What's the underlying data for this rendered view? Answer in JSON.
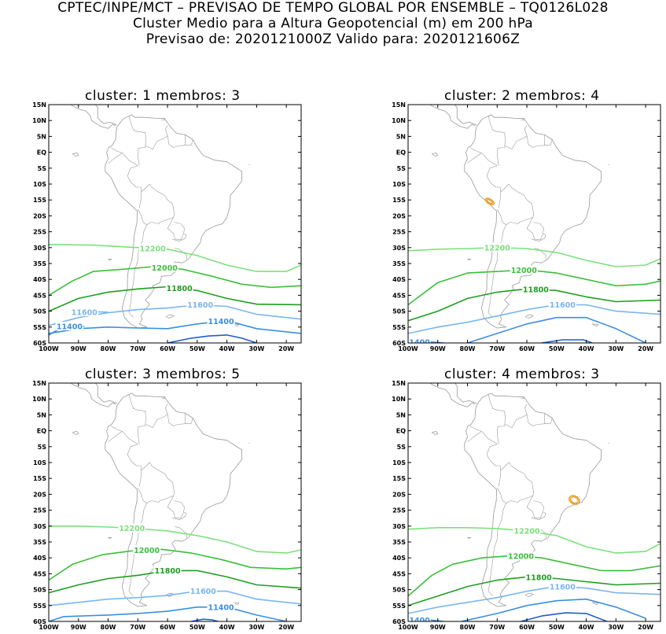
{
  "header": {
    "line1": "CPTEC/INPE/MCT – PREVISAO DE TEMPO GLOBAL POR ENSEMBLE – TQ0126L028",
    "line2": "Cluster Medio para a Altura Geopotencial (m) em 200 hPa",
    "line3": "Previsao de: 2020121000Z    Valido para: 2020121606Z"
  },
  "axes": {
    "lat_labels": [
      "15N",
      "10N",
      "5N",
      "EQ",
      "5S",
      "10S",
      "15S",
      "20S",
      "25S",
      "30S",
      "35S",
      "40S",
      "45S",
      "50S",
      "55S",
      "60S"
    ],
    "lon_labels": [
      "100W",
      "90W",
      "80W",
      "70W",
      "60W",
      "50W",
      "40W",
      "30W",
      "20W"
    ]
  },
  "colors": {
    "c12200": "#7de07d",
    "c12000": "#3cbf3c",
    "c11800": "#1f9e1f",
    "c11600": "#7ab6ee",
    "c11400": "#3c8fdf",
    "c11200": "#1f5fc8",
    "coast": "#999999",
    "orange": "#f09a1c"
  },
  "panels": [
    {
      "title": "cluster: 1   membros: 3",
      "contour_labels": [
        {
          "text": "12200"
        },
        {
          "text": "12000"
        },
        {
          "text": "11800"
        },
        {
          "text": "11600"
        },
        {
          "text": "11600"
        },
        {
          "text": "11400"
        },
        {
          "text": "11400"
        }
      ]
    },
    {
      "title": "cluster: 2   membros: 4",
      "contour_labels": [
        {
          "text": "12200"
        },
        {
          "text": "12000"
        },
        {
          "text": "11800"
        },
        {
          "text": "11600"
        },
        {
          "text": "11400"
        },
        {
          "text": "600"
        }
      ]
    },
    {
      "title": "cluster: 3   membros: 5",
      "contour_labels": [
        {
          "text": "12200"
        },
        {
          "text": "12000"
        },
        {
          "text": "11800"
        },
        {
          "text": "11600"
        },
        {
          "text": "11400"
        }
      ]
    },
    {
      "title": "cluster: 4   membros: 3",
      "contour_labels": [
        {
          "text": "12200"
        },
        {
          "text": "12000"
        },
        {
          "text": "11800"
        },
        {
          "text": "11600"
        },
        {
          "text": "11400"
        },
        {
          "text": "400"
        }
      ]
    }
  ]
}
